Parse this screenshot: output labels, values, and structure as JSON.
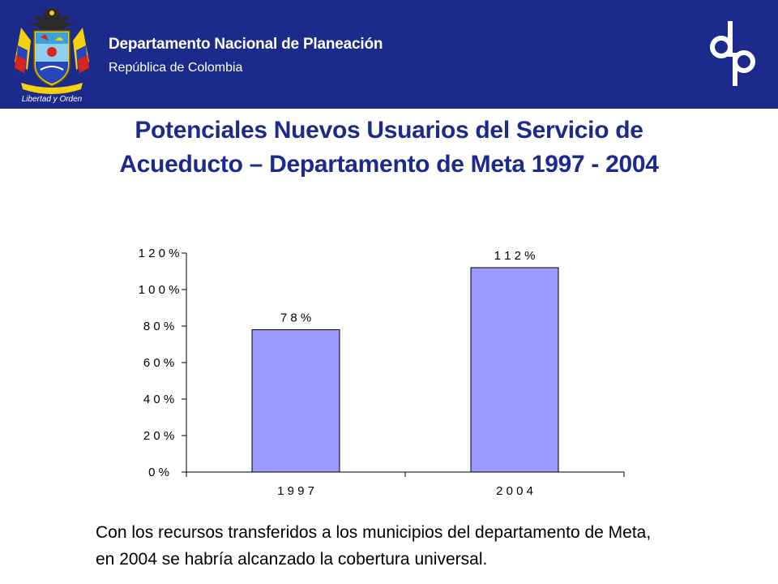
{
  "header": {
    "org_name": "Departamento Nacional de Planeación",
    "country": "República de Colombia",
    "crest_motto": "Libertad y Orden",
    "logo_text": "dnp",
    "background": "#1c2a8c"
  },
  "title": {
    "line1": "Potenciales Nuevos Usuarios del Servicio de",
    "line2": "Acueducto – Departamento de Meta 1997 - 2004",
    "color": "#1c2a8c"
  },
  "chart_data": {
    "type": "bar",
    "categories": [
      "1 9 9 7",
      "2 0 0 4"
    ],
    "values": [
      78,
      112
    ],
    "data_labels": [
      "7 8 %",
      "1 1 2 %"
    ],
    "yticks": [
      "0 %",
      "2 0 %",
      "4 0 %",
      "6 0 %",
      "8 0 %",
      "1 0 0 %",
      "1 2 0 %"
    ],
    "ylim": [
      0,
      120
    ],
    "grid": false,
    "bar_color": "#9999ff",
    "title": "",
    "xlabel": "",
    "ylabel": ""
  },
  "caption": {
    "line1": "Con los recursos transferidos a los municipios del departamento de Meta,",
    "line2": "en 2004 se habría alcanzado la cobertura universal."
  }
}
